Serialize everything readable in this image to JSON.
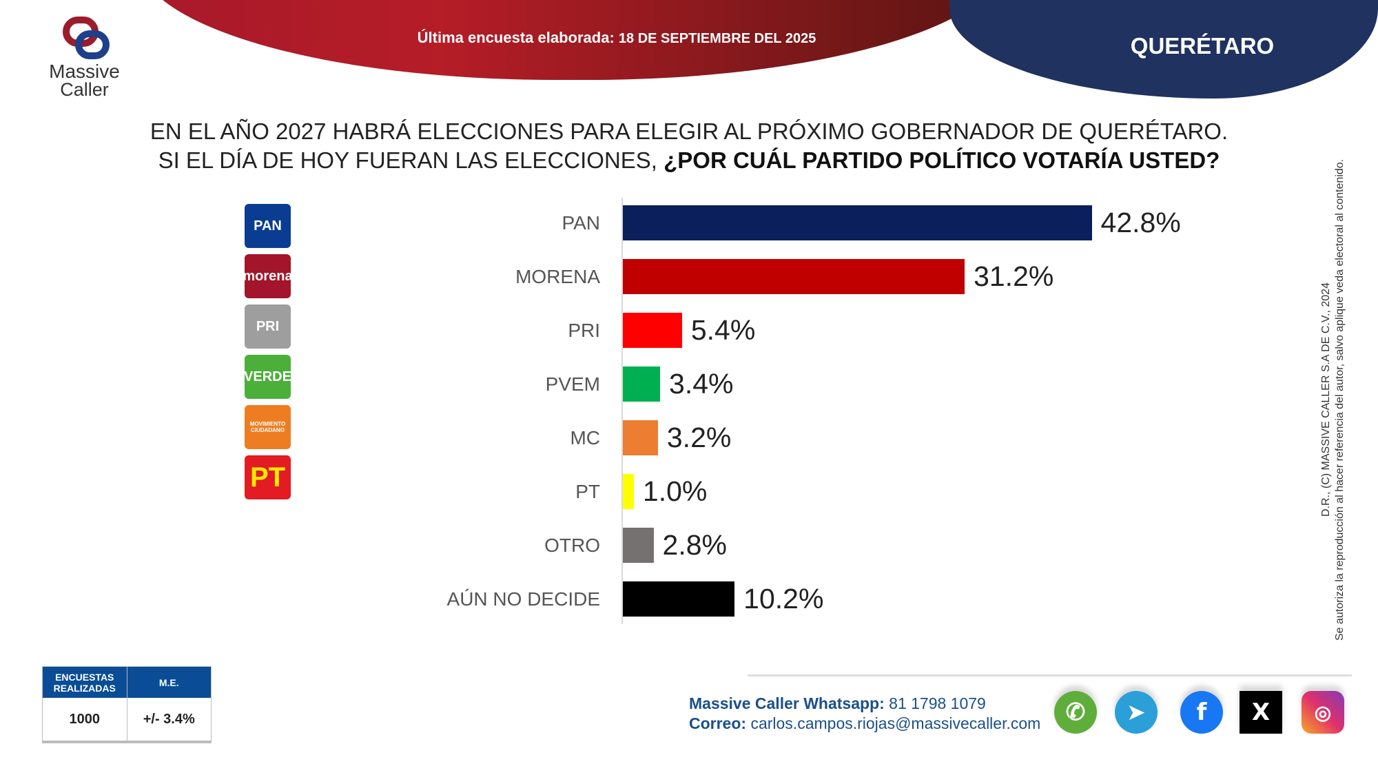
{
  "header": {
    "date_prefix": "Última encuesta elaborada:",
    "date_value": "18 DE SEPTIEMBRE DEL 2025",
    "state": "QUERÉTARO",
    "logo": "Massive Caller"
  },
  "logo": {
    "line1": "Massive",
    "line2": "Caller"
  },
  "question": {
    "line1": "EN EL AÑO 2027 HABRÁ ELECCIONES PARA ELEGIR AL PRÓXIMO GOBERNADOR DE QUERÉTARO.",
    "line2_prefix": "SI EL DÍA DE HOY FUERAN LAS ELECCIONES,",
    "line2_bold": "¿POR CUÁL PARTIDO POLÍTICO VOTARÍA USTED?"
  },
  "party_logos": [
    {
      "text": "PAN",
      "color": "#0a3d91"
    },
    {
      "text": "morena",
      "color": "#a3152a"
    },
    {
      "text": "PRI",
      "color": "#9e9e9e"
    },
    {
      "text": "VERDE",
      "color": "#4caf3a"
    },
    {
      "text": "MOVIMIENTO CIUDADANO",
      "color": "#ee7d22"
    },
    {
      "text": "PT",
      "color": "#e31b23"
    }
  ],
  "chart_data": {
    "type": "bar",
    "orientation": "horizontal",
    "categories": [
      "PAN",
      "MORENA",
      "PRI",
      "PVEM",
      "MC",
      "PT",
      "OTRO",
      "AÚN NO DECIDE"
    ],
    "values": [
      42.8,
      31.2,
      5.4,
      3.4,
      3.2,
      1.0,
      2.8,
      10.2
    ],
    "value_labels": [
      "42.8%",
      "31.2%",
      "5.4%",
      "3.4%",
      "3.2%",
      "1.0%",
      "2.8%",
      "10.2%"
    ],
    "colors": [
      "#0a1f5c",
      "#c00000",
      "#ff0000",
      "#00b050",
      "#ed7d31",
      "#ffff00",
      "#767171",
      "#000000"
    ],
    "unit": "%",
    "grid": false
  },
  "table": {
    "col1": "ENCUESTAS REALIZADAS",
    "col2": "M.E.",
    "val1": "1000",
    "val2": "+/- 3.4%"
  },
  "contact": {
    "whatsapp_label": "Massive Caller Whatsapp:",
    "whatsapp": "81 1798 1079",
    "email_label": "Correo:",
    "email": "carlos.campos.riojas@massivecaller.com"
  },
  "social": [
    {
      "name": "whatsapp",
      "color": "#5fae3c"
    },
    {
      "name": "telegram",
      "color": "#2a9fd8"
    },
    {
      "name": "facebook",
      "color": "#1877f2"
    },
    {
      "name": "x",
      "color": "#000000"
    },
    {
      "name": "instagram",
      "color": "#d6307a"
    }
  ],
  "copyright": {
    "line1": "D.R., (C) MASSIVE CALLER S.A DE C.V., 2024",
    "line2": "Se autoriza la reproducción al hacer referencia del autor, salvo aplique veda electoral al contenido."
  }
}
